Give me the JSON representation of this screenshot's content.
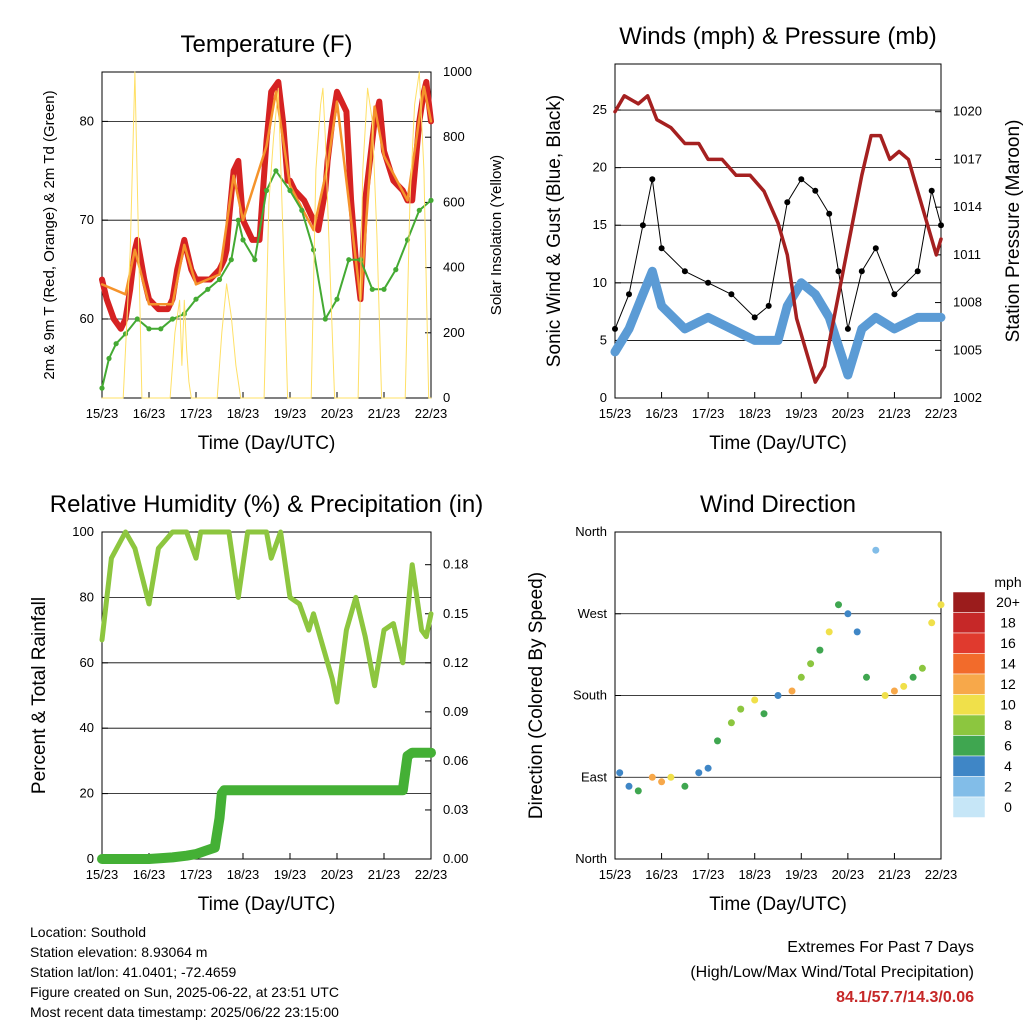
{
  "chart_data": [
    {
      "type": "line",
      "title": "Temperature (F)",
      "xlabel": "Time (Day/UTC)",
      "ylabel": "2m & 9m T (Red, Orange) & 2m Td (Green)",
      "ylabel_right": "Solar Insolation (Yellow)",
      "x_ticks": [
        "15/23",
        "16/23",
        "17/23",
        "18/23",
        "19/23",
        "20/23",
        "21/23",
        "22/23"
      ],
      "ylim": [
        52,
        85
      ],
      "y_ticks": [
        60,
        70,
        80
      ],
      "ylim_right": [
        0,
        1000
      ],
      "y_ticks_right": [
        0,
        200,
        400,
        600,
        800,
        1000
      ],
      "grid": "horizontal major ticks",
      "series": [
        {
          "color": "#d62222",
          "x": [
            0,
            0.1,
            0.25,
            0.4,
            0.5,
            0.6,
            0.7,
            0.75,
            0.9,
            1.0,
            1.2,
            1.4,
            1.5,
            1.6,
            1.75,
            1.9,
            2.0,
            2.1,
            2.3,
            2.5,
            2.6,
            2.65,
            2.7,
            2.8,
            2.9,
            3.0,
            3.2,
            3.35,
            3.5,
            3.6,
            3.75,
            3.85,
            3.95,
            4.0,
            4.1,
            4.3,
            4.5,
            4.6,
            4.75,
            4.8,
            4.9,
            5.0,
            5.2,
            5.3,
            5.4,
            5.5,
            5.6,
            5.8,
            5.9,
            6.0,
            6.2,
            6.4,
            6.5,
            6.6,
            6.75,
            6.85,
            6.9,
            7.0
          ],
          "y": [
            64,
            62,
            60,
            59,
            60,
            63,
            67,
            68,
            64,
            62,
            61,
            61,
            62,
            65,
            68,
            65,
            64,
            64,
            64,
            65,
            66,
            67,
            70,
            75,
            76,
            70,
            68,
            68,
            78,
            83,
            84,
            80,
            74,
            74,
            73,
            72,
            70,
            69,
            73,
            76,
            80,
            83,
            81,
            72,
            66,
            62,
            72,
            80,
            82,
            77,
            74,
            73,
            72,
            72,
            80,
            83,
            84,
            80
          ]
        },
        {
          "color": "#f5932b",
          "x": [
            0,
            0.5,
            0.7,
            1.0,
            1.5,
            1.75,
            2.0,
            2.5,
            2.8,
            3.0,
            3.5,
            3.7,
            4.0,
            4.5,
            4.8,
            5.0,
            5.5,
            5.8,
            6.0,
            6.5,
            6.85,
            7.0
          ],
          "y": [
            63.5,
            62.5,
            67,
            61.5,
            61.5,
            67.5,
            63.5,
            64.5,
            74.5,
            70,
            77.5,
            83,
            73.5,
            69,
            75.5,
            82,
            62,
            81.5,
            76.5,
            72,
            83.5,
            80
          ]
        },
        {
          "color": "#44aa33",
          "x": [
            0,
            0.15,
            0.3,
            0.5,
            0.75,
            1.0,
            1.25,
            1.5,
            1.75,
            2.0,
            2.25,
            2.5,
            2.75,
            2.9,
            3.0,
            3.25,
            3.5,
            3.7,
            4.0,
            4.25,
            4.5,
            4.75,
            5.0,
            5.25,
            5.5,
            5.75,
            6.0,
            6.25,
            6.5,
            6.75,
            7.0
          ],
          "y": [
            53,
            56,
            57.5,
            58.5,
            60,
            59,
            59,
            60,
            60.5,
            62,
            63,
            64,
            66,
            70,
            68,
            66,
            73,
            75,
            73,
            71,
            67,
            60,
            62,
            66,
            66,
            63,
            63,
            65,
            68,
            71,
            72
          ]
        },
        {
          "color": "#ffe066",
          "x": [
            0.0,
            0.45,
            0.6,
            0.7,
            0.85,
            1.45,
            1.55,
            1.65,
            1.7,
            1.75,
            1.8,
            1.85,
            1.9,
            2.45,
            2.55,
            2.65,
            2.75,
            2.85,
            2.95,
            3.45,
            3.55,
            3.65,
            3.75,
            3.85,
            3.95,
            4.45,
            4.55,
            4.65,
            4.7,
            4.75,
            4.85,
            4.95,
            5.45,
            5.55,
            5.65,
            5.75,
            5.85,
            5.95,
            6.45,
            6.55,
            6.65,
            6.75,
            6.85,
            6.95,
            7.0
          ],
          "y": [
            0,
            0,
            450,
            1000,
            0,
            0,
            200,
            300,
            100,
            300,
            150,
            50,
            0,
            0,
            200,
            350,
            250,
            100,
            0,
            0,
            600,
            800,
            950,
            500,
            0,
            0,
            700,
            900,
            950,
            800,
            400,
            0,
            0,
            700,
            950,
            850,
            500,
            0,
            0,
            600,
            900,
            1000,
            700,
            0,
            0
          ],
          "axis": "right"
        }
      ]
    },
    {
      "type": "scatter",
      "title": "Winds (mph) & Pressure (mb)",
      "xlabel": "Time (Day/UTC)",
      "ylabel": "Sonic Wind & Gust (Blue, Black)",
      "ylabel_right": "Station Pressure (Maroon)",
      "x_ticks": [
        "15/23",
        "16/23",
        "17/23",
        "18/23",
        "19/23",
        "20/23",
        "21/23",
        "22/23"
      ],
      "ylim": [
        0,
        29
      ],
      "y_ticks": [
        0,
        5,
        10,
        15,
        20,
        25
      ],
      "ylim_right": [
        1002,
        1023
      ],
      "y_ticks_right": [
        1002,
        1005,
        1008,
        1011,
        1014,
        1017,
        1020
      ],
      "grid": "horizontal major ticks",
      "series": [
        {
          "color": "#5b9bd5",
          "x": [
            0,
            0.3,
            0.6,
            0.8,
            1.0,
            1.5,
            2.0,
            2.5,
            3.0,
            3.5,
            3.7,
            4.0,
            4.3,
            4.6,
            5.0,
            5.3,
            5.6,
            6.0,
            6.5,
            7.0
          ],
          "y": [
            4,
            6,
            9,
            11,
            8,
            6,
            7,
            6,
            5,
            5,
            8,
            10,
            9,
            7,
            2,
            6,
            7,
            6,
            7,
            7
          ]
        },
        {
          "color": "#000000",
          "x": [
            0,
            0.3,
            0.6,
            0.8,
            1.0,
            1.5,
            2.0,
            2.5,
            3.0,
            3.3,
            3.7,
            4.0,
            4.3,
            4.6,
            4.8,
            5.0,
            5.3,
            5.6,
            6.0,
            6.5,
            6.8,
            7.0
          ],
          "y": [
            6,
            9,
            15,
            19,
            13,
            11,
            10,
            9,
            7,
            8,
            17,
            19,
            18,
            16,
            11,
            6,
            11,
            13,
            9,
            11,
            18,
            15
          ]
        },
        {
          "color": "#a52020",
          "axis": "right",
          "x": [
            0,
            0.2,
            0.5,
            0.7,
            0.9,
            1.2,
            1.5,
            1.8,
            2.0,
            2.3,
            2.6,
            2.9,
            3.2,
            3.5,
            3.7,
            3.9,
            4.1,
            4.3,
            4.5,
            4.7,
            4.9,
            5.1,
            5.3,
            5.5,
            5.7,
            5.9,
            6.1,
            6.3,
            6.5,
            6.7,
            6.9,
            7.0
          ],
          "y": [
            1020,
            1021,
            1020.5,
            1021,
            1019.5,
            1019,
            1018,
            1018,
            1017,
            1017,
            1016,
            1016,
            1015,
            1013,
            1011,
            1007,
            1005,
            1003,
            1004,
            1007,
            1010,
            1013,
            1016,
            1018.5,
            1018.5,
            1017,
            1017.5,
            1017,
            1015,
            1013,
            1011,
            1012
          ]
        }
      ]
    },
    {
      "type": "line",
      "title": "Relative Humidity (%) & Precipitation (in)",
      "xlabel": "Time (Day/UTC)",
      "ylabel": "Percent & Total Rainfall",
      "x_ticks": [
        "15/23",
        "16/23",
        "17/23",
        "18/23",
        "19/23",
        "20/23",
        "21/23",
        "22/23"
      ],
      "ylim": [
        0,
        100
      ],
      "y_ticks": [
        0,
        20,
        40,
        60,
        80,
        100
      ],
      "ylim_right": [
        0,
        0.2
      ],
      "y_ticks_right": [
        "0.00",
        "0.03",
        "0.06",
        "0.09",
        "0.12",
        "0.15",
        "0.18"
      ],
      "grid": "horizontal major ticks",
      "series": [
        {
          "color": "#8dc63f",
          "x": [
            0,
            0.2,
            0.5,
            0.7,
            1.0,
            1.2,
            1.5,
            1.8,
            2.0,
            2.1,
            2.3,
            2.5,
            2.7,
            2.9,
            3.1,
            3.3,
            3.5,
            3.6,
            3.8,
            4.0,
            4.2,
            4.4,
            4.5,
            4.7,
            4.9,
            5.0,
            5.2,
            5.4,
            5.6,
            5.8,
            6.0,
            6.2,
            6.4,
            6.6,
            6.8,
            6.9,
            7.0
          ],
          "y": [
            67,
            92,
            100,
            95,
            78,
            95,
            100,
            100,
            92,
            100,
            100,
            100,
            100,
            80,
            100,
            100,
            100,
            92,
            100,
            80,
            78,
            70,
            75,
            65,
            55,
            48,
            70,
            80,
            68,
            53,
            70,
            72,
            60,
            90,
            70,
            68,
            75
          ]
        },
        {
          "color": "#44b035",
          "axis": "right",
          "x": [
            0,
            0.5,
            1.0,
            1.5,
            1.8,
            2.0,
            2.2,
            2.4,
            2.5,
            2.55,
            2.6,
            3.0,
            3.5,
            4.0,
            4.5,
            5.0,
            5.5,
            6.0,
            6.4,
            6.5,
            6.6,
            7.0
          ],
          "y": [
            0,
            0,
            0,
            0.001,
            0.002,
            0.003,
            0.005,
            0.007,
            0.025,
            0.04,
            0.042,
            0.042,
            0.042,
            0.042,
            0.042,
            0.042,
            0.042,
            0.042,
            0.042,
            0.063,
            0.065,
            0.065
          ]
        }
      ]
    },
    {
      "type": "scatter",
      "title": "Wind Direction",
      "xlabel": "Time (Day/UTC)",
      "ylabel": "Direction (Colored By Speed)",
      "x_ticks": [
        "15/23",
        "16/23",
        "17/23",
        "18/23",
        "19/23",
        "20/23",
        "21/23",
        "22/23"
      ],
      "y_ticks": [
        "North",
        "East",
        "South",
        "West",
        "North"
      ],
      "ylim": [
        0,
        360
      ],
      "legend_title": "mph",
      "legend_labels": [
        "20+",
        "18",
        "16",
        "14",
        "12",
        "10",
        "8",
        "6",
        "4",
        "2",
        "0"
      ],
      "legend_colors": [
        "#9b1c1c",
        "#c62828",
        "#e03a2e",
        "#f26b2b",
        "#f7a84a",
        "#f0e04a",
        "#8cc63f",
        "#3fa650",
        "#3f86c6",
        "#82bde8",
        "#c6e6f7"
      ],
      "points": [
        [
          0.1,
          95,
          3
        ],
        [
          0.3,
          80,
          4
        ],
        [
          0.5,
          75,
          5
        ],
        [
          0.8,
          90,
          12
        ],
        [
          1.0,
          85,
          11
        ],
        [
          1.2,
          90,
          9
        ],
        [
          1.5,
          80,
          5
        ],
        [
          1.8,
          95,
          4
        ],
        [
          2.0,
          100,
          3
        ],
        [
          2.2,
          130,
          6
        ],
        [
          2.5,
          150,
          7
        ],
        [
          2.7,
          165,
          8
        ],
        [
          3.0,
          175,
          9
        ],
        [
          3.2,
          160,
          5
        ],
        [
          3.5,
          180,
          4
        ],
        [
          3.8,
          185,
          11
        ],
        [
          4.0,
          200,
          7
        ],
        [
          4.2,
          215,
          8
        ],
        [
          4.4,
          230,
          5
        ],
        [
          4.6,
          250,
          9
        ],
        [
          4.8,
          280,
          6
        ],
        [
          5.0,
          270,
          3
        ],
        [
          5.2,
          250,
          4
        ],
        [
          5.4,
          200,
          5
        ],
        [
          5.6,
          340,
          2
        ],
        [
          5.8,
          180,
          9
        ],
        [
          6.0,
          185,
          11
        ],
        [
          6.2,
          190,
          10
        ],
        [
          6.4,
          200,
          6
        ],
        [
          6.6,
          210,
          8
        ],
        [
          6.8,
          260,
          10
        ],
        [
          7.0,
          280,
          9
        ]
      ]
    }
  ],
  "footer": {
    "location": "Location: Southold",
    "elevation": "Station elevation: 8.93064 m",
    "latlon": "Station lat/lon: 41.0401; -72.4659",
    "created": "Figure created on Sun, 2025-06-22, at 23:51 UTC",
    "timestamp": "Most recent data timestamp: 2025/06/22 23:15:00"
  },
  "extremes": {
    "title": "Extremes For Past 7 Days",
    "subtitle": "(High/Low/Max Wind/Total Precipitation)",
    "values": "84.1/57.7/14.3/0.06"
  }
}
